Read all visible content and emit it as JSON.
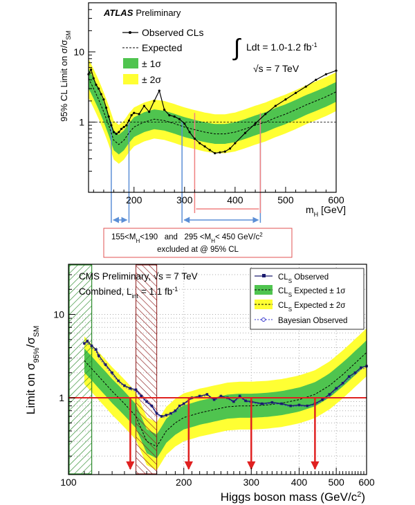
{
  "chart_data": [
    {
      "type": "line",
      "experiment": "ATLAS",
      "title_bold": "ATLAS",
      "title_rest": "Preliminary",
      "ylabel": "95% CL Limit on σ/σ",
      "ylabel_sub": "SM",
      "xlabel": "m",
      "xlabel_sub": "H",
      "xlabel_unit": "[GeV]",
      "x_scale": "linear",
      "y_scale": "log",
      "xlim": [
        110,
        600
      ],
      "ylim": [
        0.1,
        50
      ],
      "x_ticks": [
        200,
        300,
        400,
        500,
        600
      ],
      "y_ticks": [
        1,
        10
      ],
      "legend": [
        "Observed CLs",
        "Expected",
        "± 1σ",
        "± 2σ"
      ],
      "lumi_text": "Ldt = 1.0-1.2 fb",
      "lumi_sup": "-1",
      "energy_text": "√s = 7 TeV",
      "reference_line": 1,
      "observed": {
        "x": [
          110,
          115,
          120,
          125,
          130,
          135,
          140,
          145,
          150,
          155,
          160,
          165,
          170,
          175,
          180,
          185,
          190,
          195,
          200,
          210,
          220,
          230,
          240,
          250,
          260,
          270,
          280,
          290,
          300,
          310,
          320,
          330,
          340,
          350,
          360,
          370,
          380,
          390,
          400,
          420,
          440,
          460,
          480,
          500,
          520,
          540,
          560,
          580,
          600
        ],
        "y": [
          4.8,
          5.6,
          4.2,
          3.4,
          3.0,
          2.5,
          2.1,
          1.6,
          1.2,
          0.9,
          0.72,
          0.68,
          0.72,
          0.8,
          0.85,
          0.9,
          1.05,
          1.25,
          1.35,
          1.3,
          1.7,
          1.4,
          2.0,
          2.8,
          1.5,
          1.25,
          1.2,
          1.1,
          0.95,
          0.72,
          0.58,
          0.5,
          0.45,
          0.4,
          0.36,
          0.37,
          0.38,
          0.42,
          0.5,
          0.7,
          0.95,
          1.3,
          1.7,
          2.1,
          2.6,
          3.2,
          4.0,
          4.8,
          5.4
        ]
      },
      "expected": {
        "x": [
          110,
          120,
          130,
          140,
          150,
          160,
          170,
          180,
          190,
          200,
          220,
          240,
          260,
          280,
          300,
          320,
          340,
          360,
          380,
          400,
          420,
          440,
          460,
          480,
          500,
          520,
          540,
          560,
          580,
          600
        ],
        "y": [
          4.2,
          3.0,
          2.1,
          1.4,
          0.9,
          0.55,
          0.48,
          0.55,
          0.7,
          0.85,
          1.0,
          1.1,
          1.05,
          0.95,
          0.85,
          0.78,
          0.72,
          0.68,
          0.68,
          0.72,
          0.8,
          0.9,
          1.0,
          1.15,
          1.3,
          1.5,
          1.75,
          2.0,
          2.3,
          2.7
        ]
      },
      "band_1sigma_factor": [
        0.72,
        1.38
      ],
      "band_2sigma_factor": [
        0.53,
        1.9
      ],
      "excluded_box": {
        "line1": "155<M",
        "line1_sub": "H",
        "line1_rest": "<190   and   295 <M",
        "line1_sub2": "H",
        "line1_end": "< 450 GeV/c",
        "line1_sup": "2",
        "line2": "excluded at @ 95% CL"
      },
      "blue_markers": [
        155,
        190,
        295,
        450
      ],
      "pink_markers": [
        320,
        450
      ],
      "colors": {
        "observed": "#000000",
        "expected": "#000000",
        "band1": "#4fc44f",
        "band2": "#ffff33",
        "blue": "#5b8fd6",
        "pink": "#f08080",
        "box_border": "#e05050"
      }
    },
    {
      "type": "line",
      "experiment": "CMS",
      "title": "CMS Preliminary, √s = 7 TeV",
      "subtitle_a": "Combined, L",
      "subtitle_sub": "int",
      "subtitle_b": " = 1.1 fb",
      "subtitle_sup": "-1",
      "ylabel": "Limit on σ",
      "ylabel_sub": "95%",
      "ylabel_mid": "/σ",
      "ylabel_sub2": "SM",
      "xlabel": "Higgs boson mass (GeV/c",
      "xlabel_sup": "2",
      "xlabel_end": ")",
      "x_scale": "log",
      "y_scale": "log",
      "xlim": [
        100,
        600
      ],
      "ylim": [
        0.12,
        40
      ],
      "x_ticks": [
        100,
        200,
        300,
        400,
        500,
        600
      ],
      "y_ticks": [
        1,
        10
      ],
      "legend": [
        {
          "pre": "CL",
          "sub": "S",
          "post": " Observed"
        },
        {
          "pre": "CL",
          "sub": "S",
          "post": " Expected ± 1σ"
        },
        {
          "pre": "CL",
          "sub": "S",
          "post": " Expected ± 2σ"
        },
        {
          "pre": "Bayesian Observed",
          "sub": "",
          "post": ""
        }
      ],
      "reference_line": 1,
      "observed": {
        "x": [
          110,
          112,
          115,
          118,
          120,
          125,
          130,
          135,
          140,
          145,
          150,
          155,
          160,
          165,
          170,
          175,
          180,
          185,
          190,
          195,
          200,
          210,
          220,
          230,
          240,
          250,
          260,
          270,
          280,
          290,
          300,
          320,
          340,
          360,
          380,
          400,
          420,
          440,
          460,
          480,
          500,
          520,
          540,
          560,
          580,
          600
        ],
        "y": [
          4.5,
          4.8,
          4.2,
          3.8,
          3.2,
          2.5,
          2.0,
          1.6,
          1.4,
          1.3,
          1.25,
          1.05,
          0.9,
          0.8,
          0.65,
          0.6,
          0.62,
          0.65,
          0.7,
          0.8,
          0.85,
          1.0,
          1.05,
          1.1,
          0.95,
          1.05,
          1.0,
          0.9,
          1.05,
          0.92,
          0.9,
          0.85,
          0.88,
          0.85,
          0.8,
          0.82,
          0.8,
          0.85,
          0.95,
          1.1,
          1.3,
          1.5,
          1.8,
          2.0,
          2.3,
          2.4
        ]
      },
      "bayesian": {
        "x": [
          110,
          112,
          115,
          118,
          120,
          125,
          130,
          135,
          140,
          145,
          150,
          155,
          160,
          165,
          170,
          175,
          180,
          185,
          190,
          195,
          200,
          210,
          220,
          230,
          240,
          250,
          260,
          270,
          280,
          290,
          300,
          320,
          340,
          360,
          380,
          400,
          420,
          440,
          460,
          480,
          500,
          520,
          540,
          560,
          580,
          600
        ],
        "y": [
          4.3,
          4.6,
          4.0,
          3.6,
          3.0,
          2.4,
          1.9,
          1.55,
          1.35,
          1.25,
          1.2,
          1.0,
          0.88,
          0.78,
          0.63,
          0.58,
          0.6,
          0.63,
          0.68,
          0.78,
          0.83,
          0.98,
          1.02,
          1.07,
          0.93,
          1.02,
          0.98,
          0.88,
          1.02,
          0.9,
          0.88,
          0.83,
          0.86,
          0.83,
          0.78,
          0.8,
          0.78,
          0.83,
          0.92,
          1.05,
          1.25,
          1.45,
          1.7,
          1.9,
          2.2,
          2.3
        ]
      },
      "expected": {
        "x": [
          110,
          120,
          130,
          140,
          150,
          160,
          170,
          180,
          190,
          200,
          220,
          240,
          260,
          280,
          300,
          330,
          360,
          400,
          440,
          480,
          520,
          560,
          600
        ],
        "y": [
          2.8,
          1.8,
          1.2,
          0.85,
          0.6,
          0.3,
          0.26,
          0.4,
          0.5,
          0.58,
          0.66,
          0.72,
          0.78,
          0.8,
          0.8,
          0.82,
          0.86,
          0.95,
          1.1,
          1.4,
          1.9,
          2.6,
          3.5
        ]
      },
      "band_1sigma_factor": [
        0.72,
        1.4
      ],
      "band_2sigma_factor": [
        0.52,
        1.95
      ],
      "hatched_green": [
        100,
        115
      ],
      "hatched_red": [
        150,
        170
      ],
      "red_arrows_at": [
        145,
        206,
        300,
        440
      ],
      "colors": {
        "observed": "#1a1a6e",
        "bayesian": "#3333cc",
        "expected": "#000000",
        "band1": "#4fc44f",
        "band2": "#ffff33",
        "red": "#e02020",
        "hatch_green": "#2a8a2a",
        "hatch_red": "#8b1a1a"
      }
    }
  ]
}
